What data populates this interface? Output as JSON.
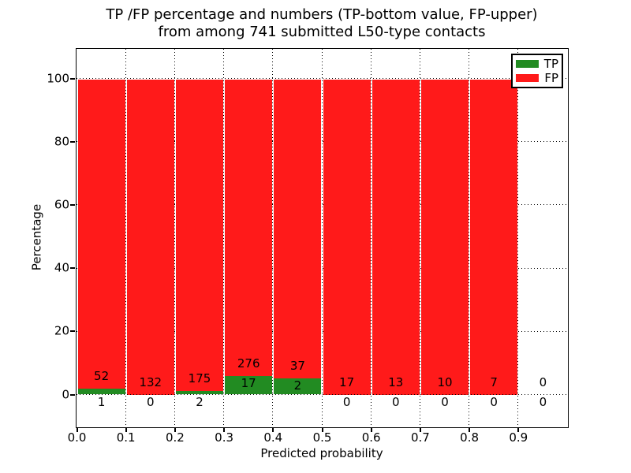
{
  "title": {
    "line1": "TP /FP percentage and numbers (TP-bottom value, FP-upper)",
    "line2": "from among 741 submitted L50-type contacts"
  },
  "chart_data": {
    "type": "bar",
    "subtype": "stacked-percent",
    "title": "TP /FP percentage and numbers (TP-bottom value, FP-upper) from among 741 submitted L50-type contacts",
    "xlabel": "Predicted probability",
    "ylabel": "Percentage",
    "total_contacts": 741,
    "bin_starts": [
      0.0,
      0.1,
      0.2,
      0.3,
      0.4,
      0.5,
      0.6,
      0.7,
      0.8,
      0.9
    ],
    "bin_width": 0.1,
    "series": [
      {
        "name": "TP",
        "color": "#228b22",
        "counts": [
          1,
          0,
          2,
          17,
          2,
          0,
          0,
          0,
          0,
          0
        ]
      },
      {
        "name": "FP",
        "color": "#ff1a1a",
        "counts": [
          52,
          132,
          175,
          276,
          37,
          17,
          13,
          10,
          7,
          0
        ]
      }
    ],
    "bar_heights_percent": {
      "TP": [
        1.89,
        0.0,
        1.13,
        5.8,
        5.13,
        0.0,
        0.0,
        0.0,
        0.0,
        null
      ],
      "FP": [
        98.11,
        100.0,
        98.87,
        94.2,
        94.87,
        100.0,
        100.0,
        100.0,
        100.0,
        null
      ]
    },
    "xticks": [
      "0.0",
      "0.1",
      "0.2",
      "0.3",
      "0.4",
      "0.5",
      "0.6",
      "0.7",
      "0.8",
      "0.9"
    ],
    "yticks": [
      "0",
      "20",
      "40",
      "60",
      "80",
      "100"
    ],
    "xlim": [
      0.0,
      1.0
    ],
    "ylim": [
      -10,
      109.4
    ],
    "grid": "dotted",
    "legend": {
      "position": "upper right",
      "entries": [
        {
          "label": "TP",
          "color": "#228b22"
        },
        {
          "label": "FP",
          "color": "#ff1a1a"
        }
      ]
    }
  }
}
